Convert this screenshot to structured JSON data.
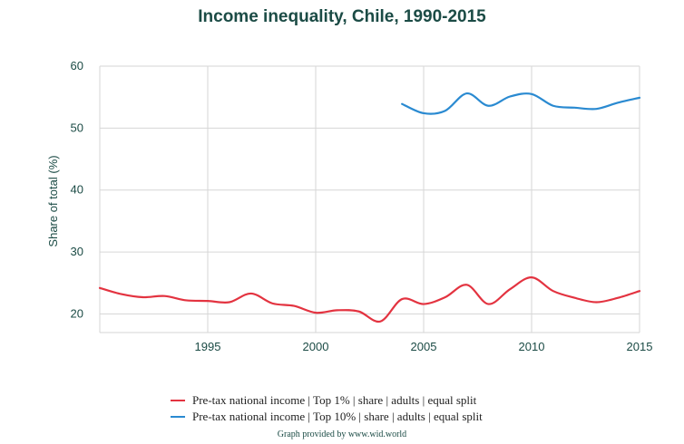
{
  "chart_data": {
    "type": "line",
    "title": "Income inequality, Chile, 1990-2015",
    "xlabel": "",
    "ylabel": "Share of total (%)",
    "xlim": [
      1990,
      2015
    ],
    "ylim": [
      17,
      60
    ],
    "x_ticks": [
      1995,
      2000,
      2005,
      2010,
      2015
    ],
    "y_ticks": [
      20,
      30,
      40,
      50,
      60
    ],
    "grid": true,
    "legend_position": "bottom",
    "series": [
      {
        "name": "Pre-tax national income | Top 1% | share | adults | equal split",
        "color": "#e33340",
        "x": [
          1990,
          1991,
          1992,
          1993,
          1994,
          1995,
          1996,
          1997,
          1998,
          1999,
          2000,
          2001,
          2002,
          2003,
          2004,
          2005,
          2006,
          2007,
          2008,
          2009,
          2010,
          2011,
          2012,
          2013,
          2014,
          2015
        ],
        "values": [
          24.2,
          23.2,
          22.7,
          22.9,
          22.2,
          22.1,
          21.9,
          23.3,
          21.7,
          21.3,
          20.2,
          20.6,
          20.4,
          18.8,
          22.4,
          21.6,
          22.7,
          24.7,
          21.6,
          24.0,
          25.9,
          23.7,
          22.6,
          21.9,
          22.6,
          23.7
        ]
      },
      {
        "name": "Pre-tax national income | Top 10% | share | adults | equal split",
        "color": "#2a8ad1",
        "x": [
          2004,
          2005,
          2006,
          2007,
          2008,
          2009,
          2010,
          2011,
          2012,
          2013,
          2014,
          2015
        ],
        "values": [
          53.9,
          52.4,
          52.8,
          55.6,
          53.6,
          55.1,
          55.5,
          53.6,
          53.3,
          53.1,
          54.1,
          54.9
        ]
      }
    ]
  },
  "credit": "Graph provided by www.wid.world"
}
